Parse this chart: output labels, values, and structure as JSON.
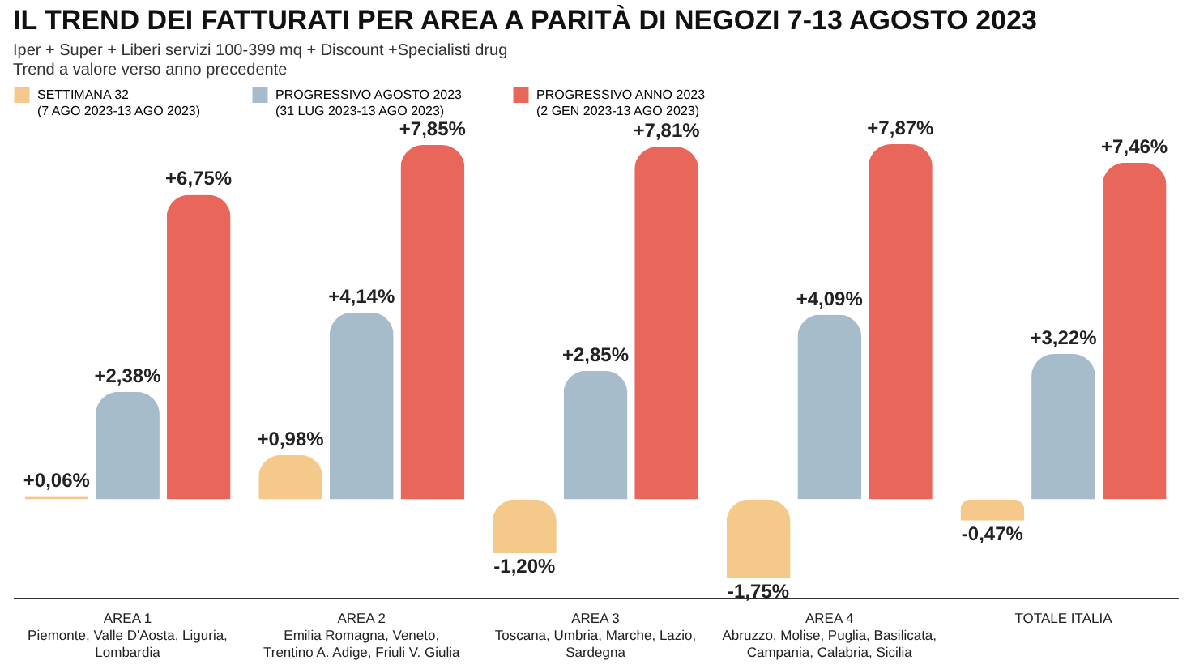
{
  "chart_data": {
    "type": "bar",
    "title": "IL TREND DEI FATTURATI PER AREA A PARITÀ DI NEGOZI 7-13 AGOSTO 2023",
    "subtitle": "Iper + Super + Liberi servizi 100-399 mq + Discount +Specialisti drug",
    "annotations": [
      "Trend a valore verso anno precedente"
    ],
    "categories": [
      "AREA 1\nPiemonte, Valle D'Aosta, Liguria,\nLombardia",
      "AREA 2\nEmilia Romagna, Veneto,\nTrentino A. Adige, Friuli V. Giulia",
      "AREA 3\nToscana, Umbria, Marche, Lazio,\nSardegna",
      "AREA 4\nAbruzzo, Molise, Puglia, Basilicata,\nCampania, Calabria, Sicilia",
      "TOTALE ITALIA"
    ],
    "series": [
      {
        "name": "SETTIMANA 32\n(7 AGO 2023-13 AGO 2023)",
        "color": "#f5c98a",
        "values": [
          0.06,
          0.98,
          -1.2,
          -1.75,
          -0.47
        ],
        "value_labels": [
          "+0,06%",
          "+0,98%",
          "-1,20%",
          "-1,75%",
          "-0,47%"
        ]
      },
      {
        "name": "PROGRESSIVO AGOSTO 2023\n(31 LUG 2023-13 AGO 2023)",
        "color": "#a6bccb",
        "values": [
          2.38,
          4.14,
          2.85,
          4.09,
          3.22
        ],
        "value_labels": [
          "+2,38%",
          "+4,14%",
          "+2,85%",
          "+4,09%",
          "+3,22%"
        ]
      },
      {
        "name": "PROGRESSIVO ANNO 2023\n(2 GEN 2023-13 AGO 2023)",
        "color": "#e8665a",
        "values": [
          6.75,
          7.85,
          7.81,
          7.87,
          7.46
        ],
        "value_labels": [
          "+6,75%",
          "+7,85%",
          "+7,81%",
          "+7,87%",
          "+7,46%"
        ]
      }
    ],
    "legend": "top"
  }
}
